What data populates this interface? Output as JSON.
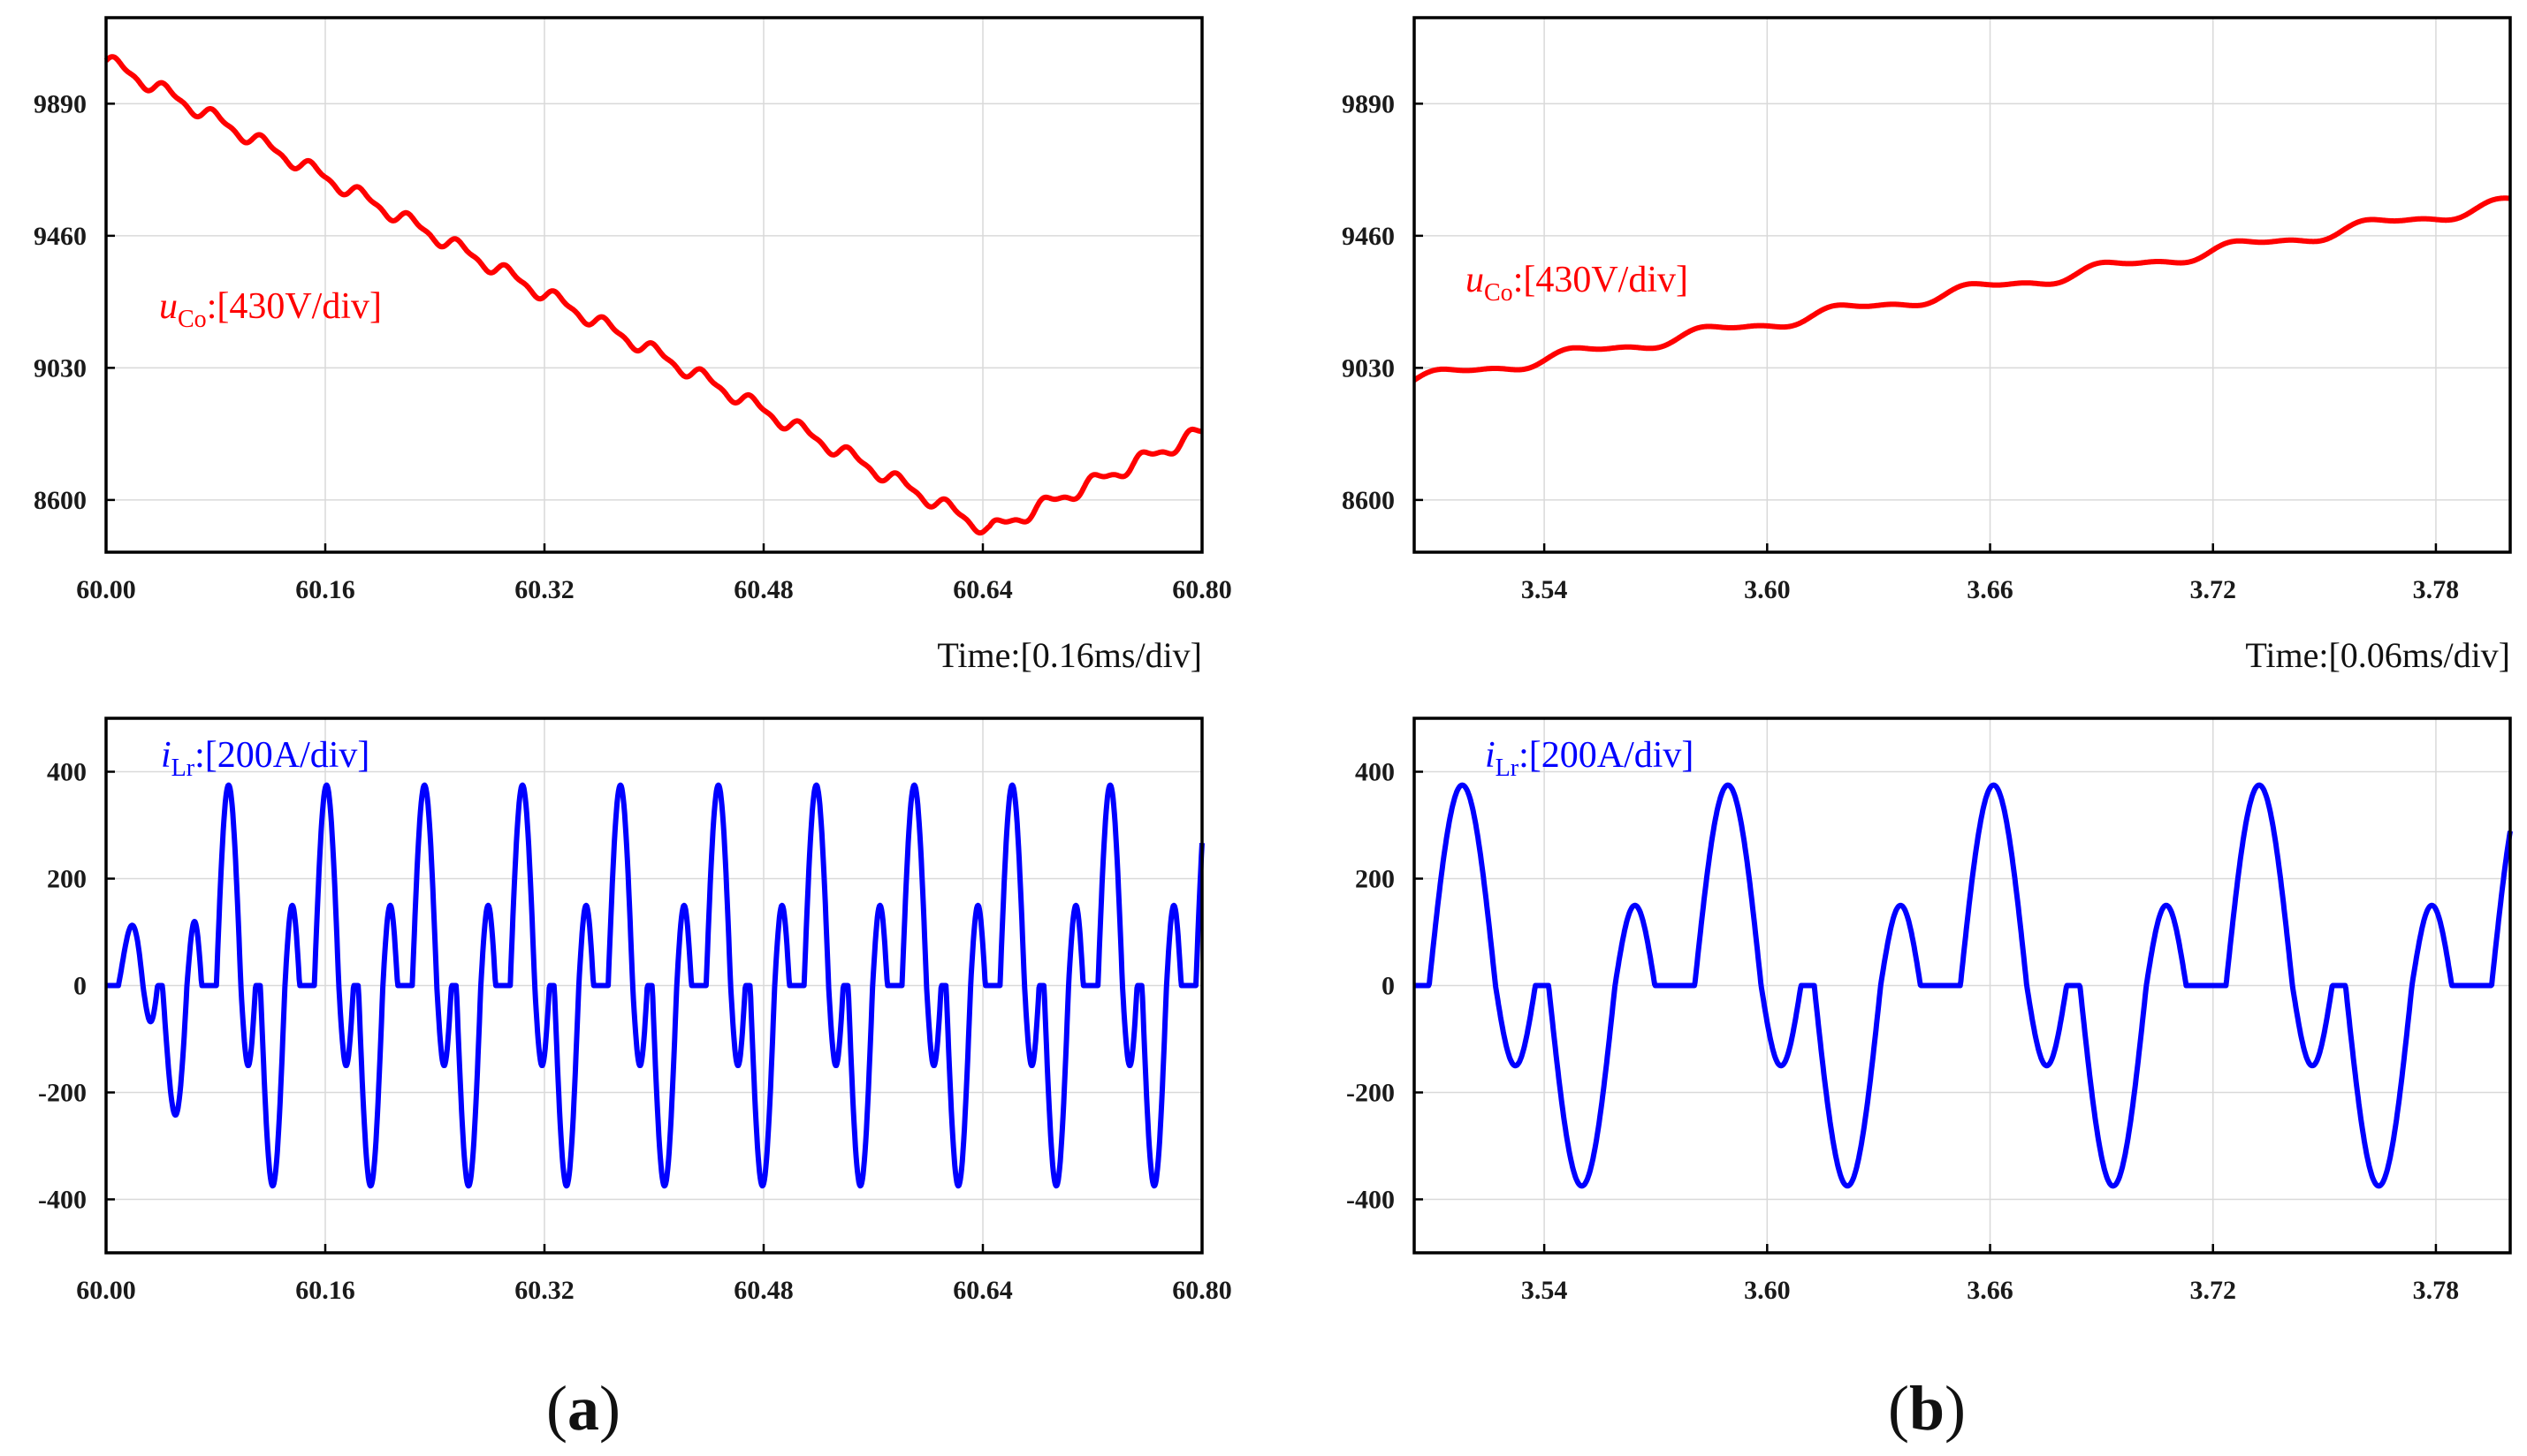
{
  "chart_data": [
    {
      "id": "a-top",
      "type": "line",
      "series": [
        {
          "name": "uCo",
          "color": "#ff0000",
          "waveform": "voltage",
          "start": 10030,
          "min_value": 8500,
          "min_at": 60.645,
          "end": 8820,
          "ripple": 35
        }
      ],
      "xlim": [
        60.0,
        60.8
      ],
      "ylim": [
        8430,
        10170
      ],
      "x_ticks": [
        "60.00",
        "60.16",
        "60.32",
        "60.48",
        "60.64",
        "60.80"
      ],
      "y_ticks": [
        "8600",
        "9030",
        "9460",
        "9890"
      ],
      "xlabel": "Time:[0.16ms/div]",
      "label": {
        "pre": "u",
        "sub": "Co",
        "post": ":[430V/div]"
      }
    },
    {
      "id": "a-bottom",
      "type": "line",
      "series": [
        {
          "name": "iLr",
          "color": "#0000ff",
          "waveform": "current",
          "period": 0.0715,
          "phase": 60.009,
          "settle": 60.083
        }
      ],
      "xlim": [
        60.0,
        60.8
      ],
      "ylim": [
        -500,
        500
      ],
      "x_ticks": [
        "60.00",
        "60.16",
        "60.32",
        "60.48",
        "60.64",
        "60.80"
      ],
      "y_ticks": [
        "-400",
        "-200",
        "0",
        "200",
        "400"
      ],
      "xlabel": "",
      "label": {
        "pre": "i",
        "sub": "Lr",
        "post": ":[200A/div]"
      }
    },
    {
      "id": "b-top",
      "type": "line",
      "series": [
        {
          "name": "uCo",
          "color": "#ff0000",
          "waveform": "voltage",
          "start": 8990,
          "end": 9565,
          "ripple": 30
        }
      ],
      "xlim": [
        3.505,
        3.8
      ],
      "ylim": [
        8430,
        10170
      ],
      "x_ticks": [
        "3.54",
        "3.60",
        "3.66",
        "3.72",
        "3.78"
      ],
      "y_ticks": [
        "8600",
        "9030",
        "9460",
        "9890"
      ],
      "xlabel": "Time:[0.06ms/div]",
      "label": {
        "pre": "u",
        "sub": "Co",
        "post": ":[430V/div]"
      }
    },
    {
      "id": "b-bottom",
      "type": "line",
      "series": [
        {
          "name": "iLr",
          "color": "#0000ff",
          "waveform": "current",
          "period": 0.0715,
          "phase": 3.509,
          "settle": 0
        }
      ],
      "xlim": [
        3.505,
        3.8
      ],
      "ylim": [
        -500,
        500
      ],
      "x_ticks": [
        "3.54",
        "3.60",
        "3.66",
        "3.72",
        "3.78"
      ],
      "y_ticks": [
        "-400",
        "-200",
        "0",
        "200",
        "400"
      ],
      "xlabel": "",
      "label": {
        "pre": "i",
        "sub": "Lr",
        "post": ":[200A/div]"
      }
    }
  ],
  "panels": {
    "a": "(a)",
    "b": "(b)"
  }
}
